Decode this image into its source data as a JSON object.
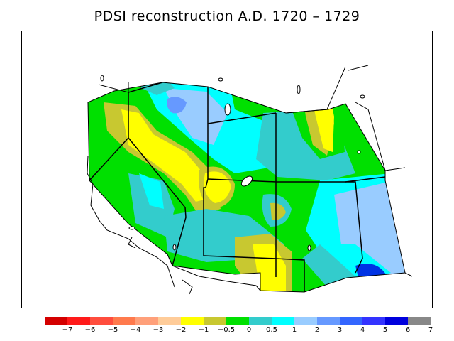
{
  "title": "PDSI reconstruction A.D. 1720  –  1729",
  "legend": {
    "colors": [
      "#d40000",
      "#ff1a1a",
      "#ff4d3d",
      "#ff7a4d",
      "#ffa07a",
      "#ffcc99",
      "#ffff00",
      "#c8c830",
      "#00e000",
      "#33cccc",
      "#00ffff",
      "#99ccff",
      "#6699ff",
      "#3366ff",
      "#3333ff",
      "#0000dd",
      "#888888"
    ],
    "ticks": [
      "−7",
      "−6",
      "−5",
      "−4",
      "−3",
      "−2",
      "−1",
      "−0.5",
      "0",
      "0.5",
      "1",
      "2",
      "3",
      "4",
      "5",
      "6",
      "7"
    ]
  }
}
